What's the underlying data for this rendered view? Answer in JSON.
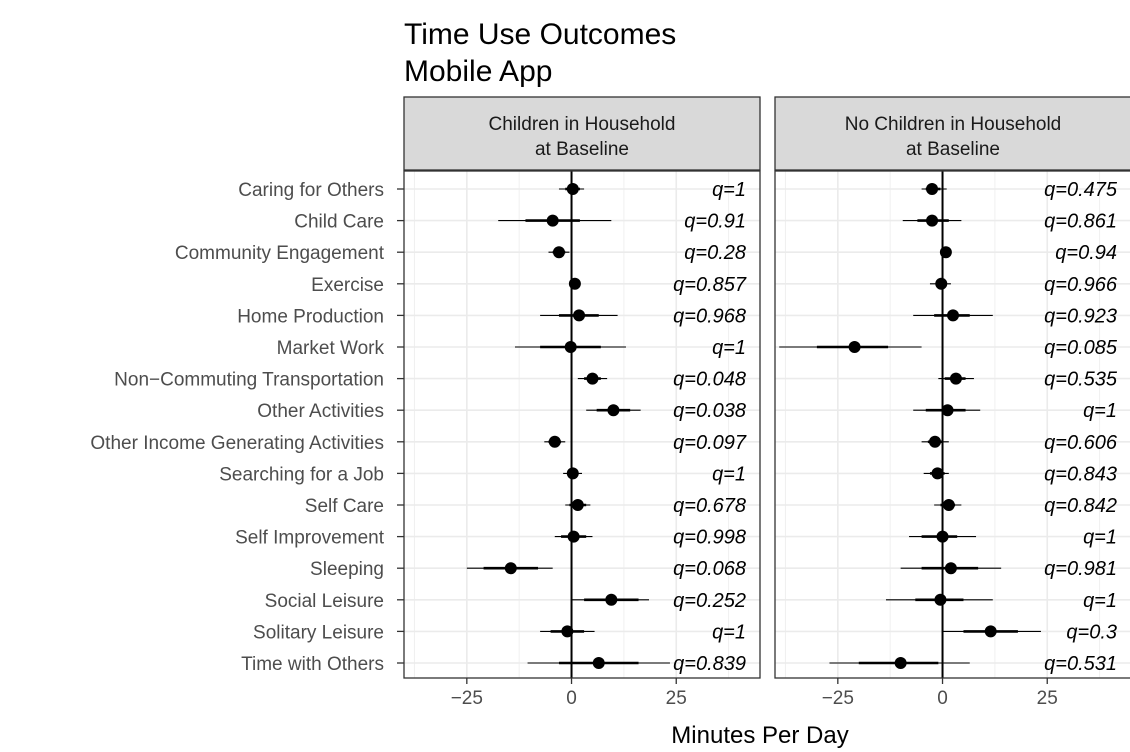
{
  "chart_data": {
    "type": "scatter",
    "title": [
      "Time Use Outcomes",
      "Mobile App"
    ],
    "xlabel": "Minutes Per Day",
    "ylabel": "",
    "xlim": [
      -40,
      45
    ],
    "xticks": [
      -25,
      0,
      25
    ],
    "xtick_labels": [
      "−25",
      "0",
      "25"
    ],
    "grid": true,
    "reference_line": 0,
    "categories": [
      "Caring for Others",
      "Child Care",
      "Community Engagement",
      "Exercise",
      "Home Production",
      "Market Work",
      "Non−Commuting Transportation",
      "Other Activities",
      "Other Income Generating Activities",
      "Searching for a Job",
      "Self Care",
      "Self Improvement",
      "Sleeping",
      "Social Leisure",
      "Solitary Leisure",
      "Time with Others"
    ],
    "panels": [
      {
        "strip": [
          "Children in Household",
          "at Baseline"
        ],
        "estimates": [
          0.3,
          -4.5,
          -3.0,
          0.8,
          1.8,
          -0.2,
          5.0,
          10.0,
          -4.0,
          0.3,
          1.5,
          0.5,
          -14.5,
          9.5,
          -1.0,
          6.5
        ],
        "ci90": [
          [
            -1.5,
            2.0
          ],
          [
            -11.0,
            2.0
          ],
          [
            -4.5,
            -1.5
          ],
          [
            0.0,
            1.6
          ],
          [
            -3.0,
            6.5
          ],
          [
            -7.5,
            7.0
          ],
          [
            3.0,
            7.0
          ],
          [
            6.0,
            14.0
          ],
          [
            -5.5,
            -2.5
          ],
          [
            -1.0,
            1.5
          ],
          [
            -0.5,
            3.5
          ],
          [
            -2.5,
            3.5
          ],
          [
            -21.0,
            -8.0
          ],
          [
            3.0,
            16.0
          ],
          [
            -5.0,
            3.0
          ],
          [
            -3.0,
            16.0
          ]
        ],
        "ci95": [
          [
            -3.0,
            3.0
          ],
          [
            -17.5,
            9.5
          ],
          [
            -5.5,
            -0.5
          ],
          [
            -0.5,
            2.0
          ],
          [
            -7.5,
            11.0
          ],
          [
            -13.5,
            13.0
          ],
          [
            1.5,
            8.5
          ],
          [
            3.5,
            16.5
          ],
          [
            -6.5,
            -1.5
          ],
          [
            -2.0,
            2.5
          ],
          [
            -1.5,
            4.5
          ],
          [
            -4.0,
            5.0
          ],
          [
            -25.0,
            -4.5
          ],
          [
            0.0,
            18.5
          ],
          [
            -7.5,
            5.5
          ],
          [
            -10.5,
            23.5
          ]
        ],
        "q_labels": [
          "q=1",
          "q=0.91",
          "q=0.28",
          "q=0.857",
          "q=0.968",
          "q=1",
          "q=0.048",
          "q=0.038",
          "q=0.097",
          "q=1",
          "q=0.678",
          "q=0.998",
          "q=0.068",
          "q=0.252",
          "q=1",
          "q=0.839"
        ]
      },
      {
        "strip": [
          "No Children in Household",
          "at Baseline"
        ],
        "estimates": [
          -2.5,
          -2.5,
          0.8,
          -0.3,
          2.5,
          -21.0,
          3.2,
          1.2,
          -1.8,
          -1.2,
          1.5,
          0.0,
          2.0,
          -0.5,
          11.5,
          -10.0
        ],
        "ci90": [
          [
            -4.0,
            -0.5
          ],
          [
            -6.0,
            1.5
          ],
          [
            0.0,
            1.5
          ],
          [
            -1.5,
            1.0
          ],
          [
            -2.0,
            6.5
          ],
          [
            -30.0,
            -13.0
          ],
          [
            0.5,
            5.5
          ],
          [
            -4.0,
            5.5
          ],
          [
            -3.5,
            0.0
          ],
          [
            -3.0,
            0.5
          ],
          [
            -0.5,
            3.0
          ],
          [
            -5.0,
            3.5
          ],
          [
            -5.0,
            8.5
          ],
          [
            -6.5,
            5.0
          ],
          [
            5.0,
            18.0
          ],
          [
            -20.0,
            -1.0
          ]
        ],
        "ci95": [
          [
            -5.0,
            1.0
          ],
          [
            -9.5,
            4.5
          ],
          [
            -0.5,
            2.0
          ],
          [
            -3.0,
            2.0
          ],
          [
            -7.0,
            12.0
          ],
          [
            -39.0,
            -5.0
          ],
          [
            -1.0,
            7.5
          ],
          [
            -7.0,
            9.0
          ],
          [
            -5.0,
            1.5
          ],
          [
            -4.5,
            1.5
          ],
          [
            -2.0,
            4.5
          ],
          [
            -8.0,
            8.0
          ],
          [
            -10.0,
            14.0
          ],
          [
            -13.5,
            12.0
          ],
          [
            0.0,
            23.5
          ],
          [
            -27.0,
            6.5
          ]
        ],
        "q_labels": [
          "q=0.475",
          "q=0.861",
          "q=0.94",
          "q=0.966",
          "q=0.923",
          "q=0.085",
          "q=0.535",
          "q=1",
          "q=0.606",
          "q=0.843",
          "q=0.842",
          "q=1",
          "q=0.981",
          "q=1",
          "q=0.3",
          "q=0.531"
        ]
      }
    ]
  }
}
